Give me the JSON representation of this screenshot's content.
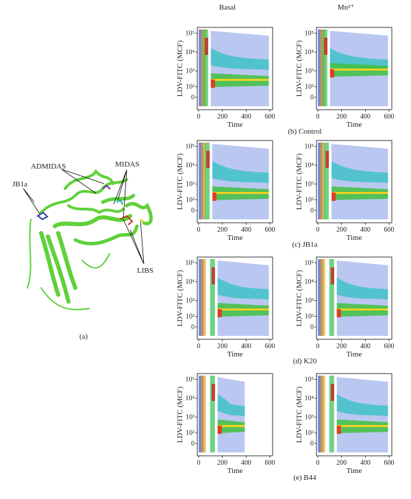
{
  "figure": {
    "panel_a": {
      "labels": [
        "ADMIDAS",
        "MIDAS",
        "JB1a",
        "LIBS"
      ],
      "caption": "(a)"
    },
    "column_headers": [
      "Basal",
      "Mn²⁺"
    ],
    "y_axis_label": "LDV-FITC (MCF)",
    "x_axis_label": "Time",
    "y_ticks": [
      "10⁵",
      "10⁴",
      "10³",
      "10²",
      "0"
    ],
    "x_ticks": [
      "0",
      "200",
      "400",
      "600"
    ],
    "rows": [
      {
        "caption": "(b) Control"
      },
      {
        "caption": "(c) JB1a"
      },
      {
        "caption": "(d) K20"
      },
      {
        "caption": "(e) B44"
      }
    ]
  }
}
